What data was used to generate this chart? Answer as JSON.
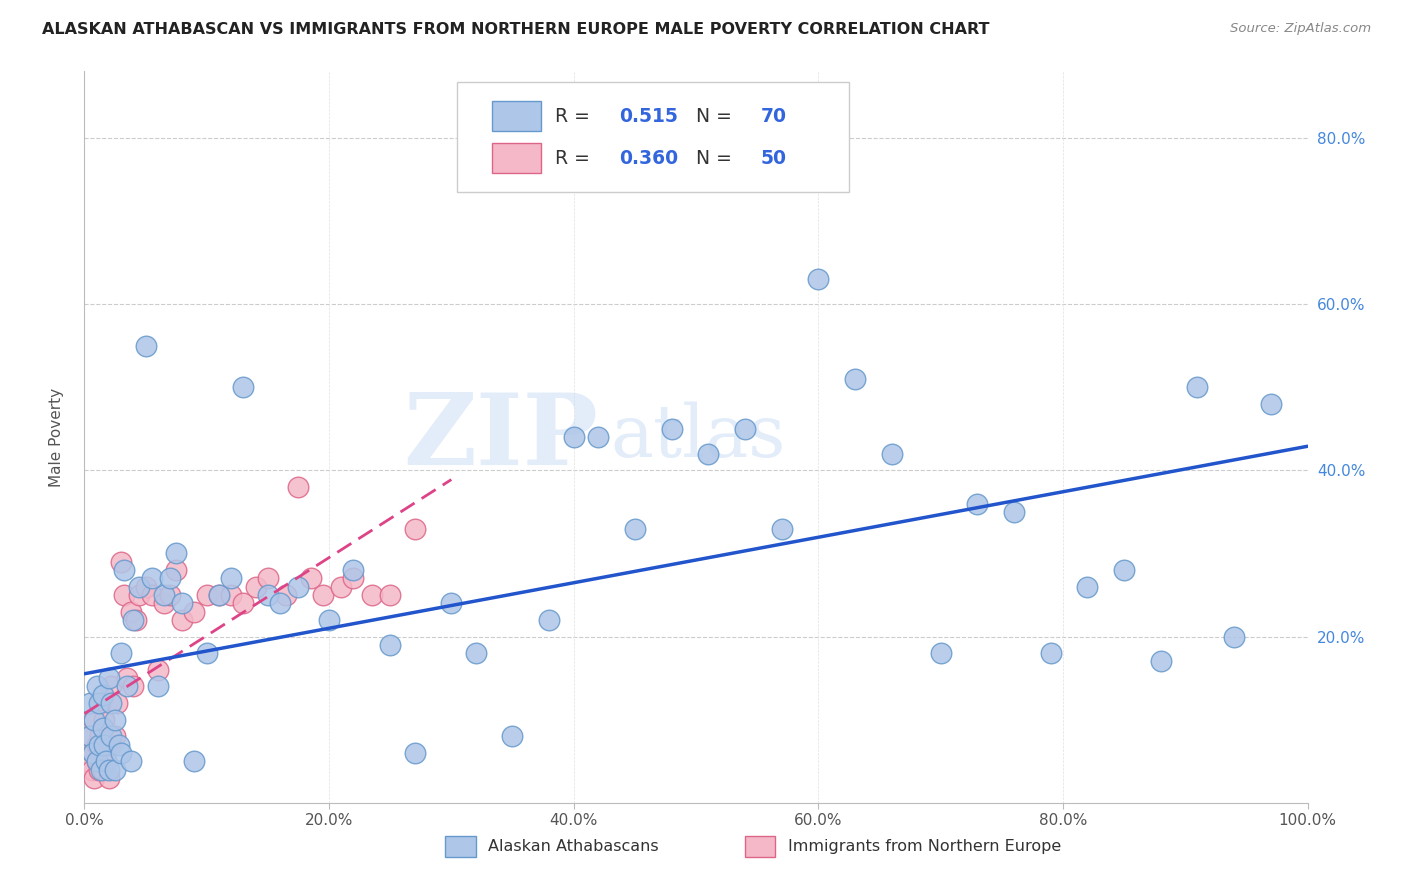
{
  "title": "ALASKAN ATHABASCAN VS IMMIGRANTS FROM NORTHERN EUROPE MALE POVERTY CORRELATION CHART",
  "source": "Source: ZipAtlas.com",
  "ylabel": "Male Poverty",
  "xlim": [
    0,
    1.0
  ],
  "ylim": [
    0,
    0.88
  ],
  "xticks": [
    0.0,
    0.2,
    0.4,
    0.6,
    0.8,
    1.0
  ],
  "xtick_labels": [
    "0.0%",
    "20.0%",
    "40.0%",
    "60.0%",
    "80.0%",
    "100.0%"
  ],
  "yticks": [
    0.2,
    0.4,
    0.6,
    0.8
  ],
  "ytick_labels": [
    "20.0%",
    "40.0%",
    "60.0%",
    "80.0%"
  ],
  "blue_color": "#aec6e8",
  "blue_edge": "#6699cc",
  "pink_color": "#f4b8c8",
  "pink_edge": "#dd6688",
  "line_blue": "#2255cc",
  "line_pink": "#dd4488",
  "legend_R1": "0.515",
  "legend_N1": "70",
  "legend_R2": "0.360",
  "legend_N2": "50",
  "label1": "Alaskan Athabascans",
  "label2": "Immigrants from Northern Europe",
  "watermark_zip": "ZIP",
  "watermark_atlas": "atlas",
  "blue_x": [
    0.005,
    0.005,
    0.007,
    0.008,
    0.01,
    0.01,
    0.012,
    0.012,
    0.014,
    0.015,
    0.015,
    0.016,
    0.018,
    0.02,
    0.02,
    0.022,
    0.022,
    0.025,
    0.025,
    0.028,
    0.03,
    0.03,
    0.032,
    0.035,
    0.038,
    0.04,
    0.045,
    0.05,
    0.055,
    0.06,
    0.065,
    0.07,
    0.075,
    0.08,
    0.09,
    0.1,
    0.11,
    0.12,
    0.13,
    0.15,
    0.16,
    0.175,
    0.2,
    0.22,
    0.25,
    0.27,
    0.3,
    0.32,
    0.35,
    0.38,
    0.4,
    0.42,
    0.45,
    0.48,
    0.51,
    0.54,
    0.57,
    0.6,
    0.63,
    0.66,
    0.7,
    0.73,
    0.76,
    0.79,
    0.82,
    0.85,
    0.88,
    0.91,
    0.94,
    0.97
  ],
  "blue_y": [
    0.08,
    0.12,
    0.06,
    0.1,
    0.05,
    0.14,
    0.07,
    0.12,
    0.04,
    0.09,
    0.13,
    0.07,
    0.05,
    0.04,
    0.15,
    0.08,
    0.12,
    0.04,
    0.1,
    0.07,
    0.18,
    0.06,
    0.28,
    0.14,
    0.05,
    0.22,
    0.26,
    0.55,
    0.27,
    0.14,
    0.25,
    0.27,
    0.3,
    0.24,
    0.05,
    0.18,
    0.25,
    0.27,
    0.5,
    0.25,
    0.24,
    0.26,
    0.22,
    0.28,
    0.19,
    0.06,
    0.24,
    0.18,
    0.08,
    0.22,
    0.44,
    0.44,
    0.33,
    0.45,
    0.42,
    0.45,
    0.33,
    0.63,
    0.51,
    0.42,
    0.18,
    0.36,
    0.35,
    0.18,
    0.26,
    0.28,
    0.17,
    0.5,
    0.2,
    0.48
  ],
  "pink_x": [
    0.003,
    0.005,
    0.006,
    0.007,
    0.008,
    0.008,
    0.01,
    0.01,
    0.012,
    0.013,
    0.014,
    0.015,
    0.015,
    0.016,
    0.018,
    0.02,
    0.022,
    0.022,
    0.025,
    0.027,
    0.03,
    0.032,
    0.035,
    0.038,
    0.04,
    0.042,
    0.045,
    0.05,
    0.055,
    0.06,
    0.065,
    0.07,
    0.075,
    0.08,
    0.09,
    0.1,
    0.11,
    0.12,
    0.13,
    0.14,
    0.15,
    0.165,
    0.175,
    0.185,
    0.195,
    0.21,
    0.22,
    0.235,
    0.25,
    0.27
  ],
  "pink_y": [
    0.05,
    0.08,
    0.04,
    0.06,
    0.03,
    0.1,
    0.05,
    0.07,
    0.04,
    0.08,
    0.12,
    0.04,
    0.07,
    0.1,
    0.05,
    0.03,
    0.07,
    0.14,
    0.08,
    0.12,
    0.29,
    0.25,
    0.15,
    0.23,
    0.14,
    0.22,
    0.25,
    0.26,
    0.25,
    0.16,
    0.24,
    0.25,
    0.28,
    0.22,
    0.23,
    0.25,
    0.25,
    0.25,
    0.24,
    0.26,
    0.27,
    0.25,
    0.38,
    0.27,
    0.25,
    0.26,
    0.27,
    0.25,
    0.25,
    0.33
  ]
}
